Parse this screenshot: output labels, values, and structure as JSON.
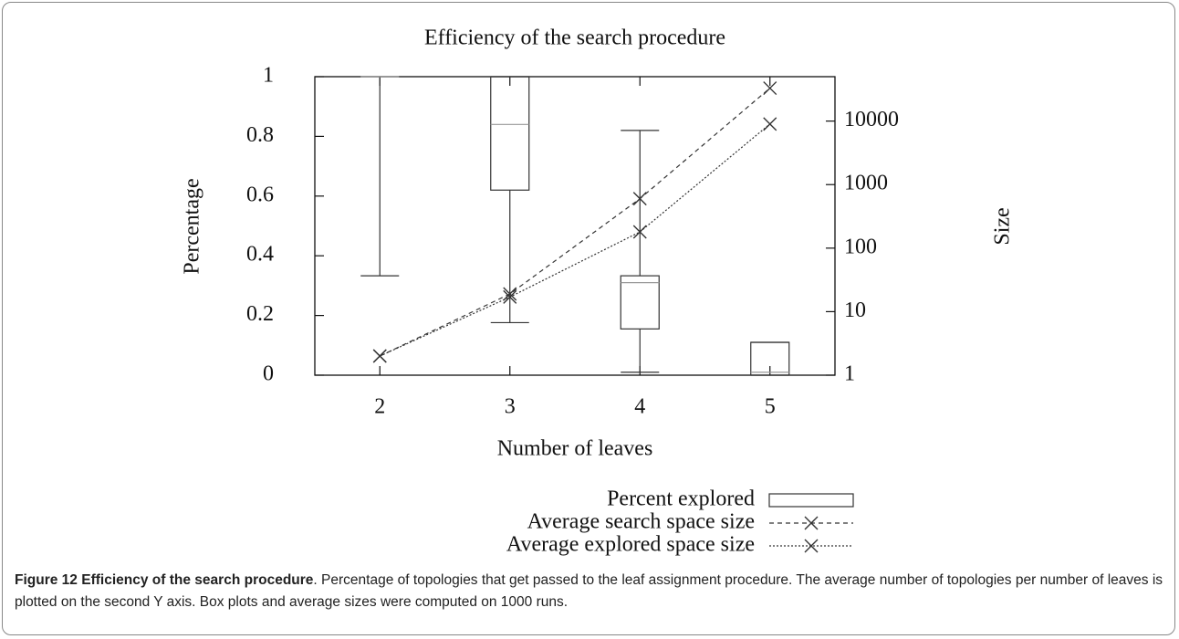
{
  "chart_data": {
    "type": "box",
    "title": "Efficiency of the search procedure",
    "x_label": "Number of leaves",
    "y_label": "Percentage",
    "y2_label": "Size",
    "x": [
      2,
      3,
      4,
      5
    ],
    "xlim": [
      1.5,
      5.5
    ],
    "xticks": [
      2,
      3,
      4,
      5
    ],
    "ylim": [
      0,
      1
    ],
    "yticks": [
      0,
      0.2,
      0.4,
      0.6,
      0.8,
      1
    ],
    "y2lim": [
      1,
      50000
    ],
    "y2scale": "log",
    "y2ticks": [
      1,
      10,
      100,
      1000,
      10000
    ],
    "legend": "bottom-right",
    "series": [
      {
        "name": "Percent explored",
        "color": "#333333",
        "min": [
          0.333,
          0.176,
          0.01,
          0
        ],
        "q1": [
          1,
          0.62,
          0.155,
          0
        ],
        "median": [
          1,
          0.84,
          0.31,
          0.01
        ],
        "q3": [
          1,
          1,
          0.333,
          0.11
        ],
        "max": [
          1,
          1,
          0.82,
          0.11
        ]
      },
      {
        "name": "Average search space size",
        "color": "#333333",
        "axis": "y2",
        "dash": "5,4",
        "values": [
          2,
          19,
          600,
          33000
        ]
      },
      {
        "name": "Average explored space size",
        "color": "#333333",
        "axis": "y2",
        "dash": "2,2",
        "values": [
          2,
          17,
          180,
          9000
        ]
      }
    ],
    "caption": {
      "label": "Figure 12 Efficiency of the search procedure",
      "text": ". Percentage of topologies that get passed to the leaf assignment procedure. The average number of topologies per number of leaves is plotted on the second Y axis. Box plots and average sizes were computed on 1000 runs."
    }
  }
}
